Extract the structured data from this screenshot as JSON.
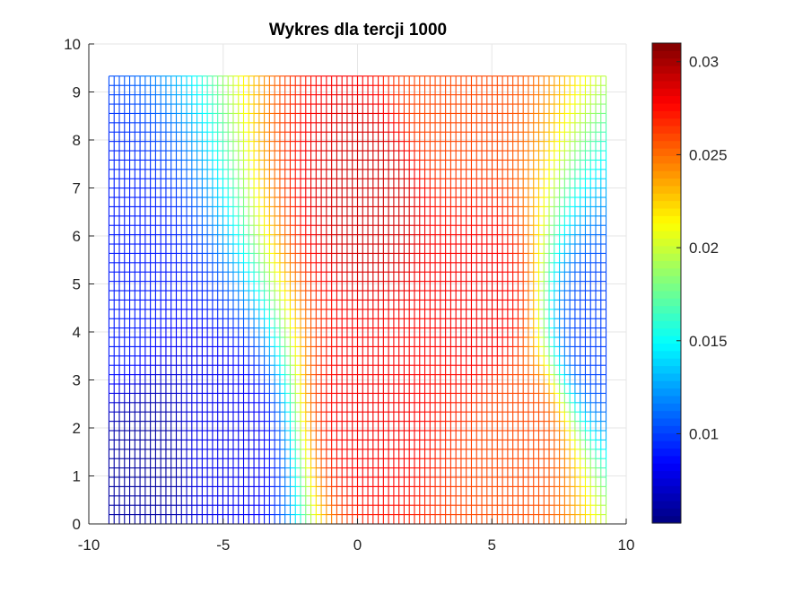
{
  "chart_data": {
    "type": "heatmap",
    "title": "Wykres dla tercji 1000",
    "xlabel": "",
    "ylabel": "",
    "xlim": [
      -10,
      10
    ],
    "ylim": [
      0,
      10
    ],
    "x_ticks": [
      "-10",
      "-5",
      "0",
      "5",
      "10"
    ],
    "y_ticks": [
      "0",
      "1",
      "2",
      "3",
      "4",
      "5",
      "6",
      "7",
      "8",
      "9",
      "10"
    ],
    "data_extent": {
      "x": [
        -9.25,
        9.25
      ],
      "y": [
        0,
        9.33
      ]
    },
    "grid": true,
    "rendering": "mesh (wireframe) surface viewed from above",
    "colormap": "jet",
    "colorbar": {
      "range": [
        0.0052,
        0.031
      ],
      "ticks": [
        "0.01",
        "0.015",
        "0.02",
        "0.025",
        "0.03"
      ],
      "tick_values": [
        0.01,
        0.015,
        0.02,
        0.025,
        0.03
      ],
      "placement": "right"
    },
    "hotspots": [
      {
        "x": 0.5,
        "y": 6.7,
        "value": 0.029
      },
      {
        "x": 0.5,
        "y": 2.5,
        "value": 0.028
      },
      {
        "x": 4.5,
        "y": 4.5,
        "value": 0.028
      },
      {
        "x": 3.2,
        "y": 9.0,
        "value": 0.026
      },
      {
        "x": 6.0,
        "y": 1.8,
        "value": 0.026
      },
      {
        "x": -7.8,
        "y": 1.2,
        "value": 0.006
      },
      {
        "x": -5.0,
        "y": 1.5,
        "value": 0.008
      },
      {
        "x": -9.0,
        "y": 4.5,
        "value": 0.009
      },
      {
        "x": 9.0,
        "y": 4.0,
        "value": 0.01
      }
    ]
  }
}
